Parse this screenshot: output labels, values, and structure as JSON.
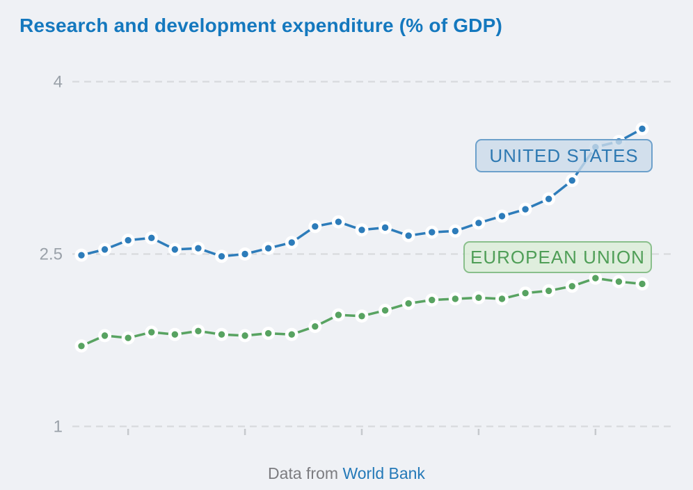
{
  "header": {
    "title": "Research and development expenditure (% of GDP)"
  },
  "footer": {
    "prefix": "Data from",
    "link_text": "World Bank"
  },
  "colors": {
    "background": "#eff1f5",
    "title": "#1478be",
    "grid": "#d8dadd",
    "tick": "#c6c9cd",
    "axis_label": "#9aa1a9",
    "footer_text": "#7c7c80",
    "footer_link": "#2479b8",
    "united_states": "#2d7cba",
    "european_union": "#58a361",
    "point_halo": "#ffffff"
  },
  "chart_data": {
    "type": "line",
    "title": "Research and development expenditure (% of GDP)",
    "xlabel": "",
    "ylabel": "",
    "x": [
      1998,
      1999,
      2000,
      2001,
      2002,
      2003,
      2004,
      2005,
      2006,
      2007,
      2008,
      2009,
      2010,
      2011,
      2012,
      2013,
      2014,
      2015,
      2016,
      2017,
      2018,
      2019,
      2020,
      2021,
      2022
    ],
    "x_ticks": [
      2000,
      2005,
      2010,
      2015,
      2020
    ],
    "x_tick_labels_visible": false,
    "y_ticks": [
      {
        "value": 4,
        "label": "4"
      },
      {
        "value": 2.5,
        "label": "2.5"
      },
      {
        "value": 1,
        "label": "1"
      }
    ],
    "ylim": [
      1,
      4
    ],
    "grid": "horizontal-dashed",
    "legend_position": "inline-annotation-boxes",
    "series": [
      {
        "name": "UNITED STATES",
        "color": "#2d7cba",
        "values": [
          2.49,
          2.54,
          2.62,
          2.64,
          2.54,
          2.55,
          2.48,
          2.5,
          2.55,
          2.6,
          2.74,
          2.78,
          2.71,
          2.73,
          2.66,
          2.69,
          2.7,
          2.77,
          2.83,
          2.89,
          2.98,
          3.14,
          3.43,
          3.48,
          3.59
        ]
      },
      {
        "name": "EUROPEAN UNION",
        "color": "#58a361",
        "values": [
          1.7,
          1.79,
          1.77,
          1.82,
          1.8,
          1.83,
          1.8,
          1.79,
          1.81,
          1.8,
          1.87,
          1.97,
          1.96,
          2.01,
          2.07,
          2.1,
          2.11,
          2.12,
          2.11,
          2.16,
          2.18,
          2.22,
          2.29,
          2.26,
          2.24
        ]
      }
    ]
  }
}
